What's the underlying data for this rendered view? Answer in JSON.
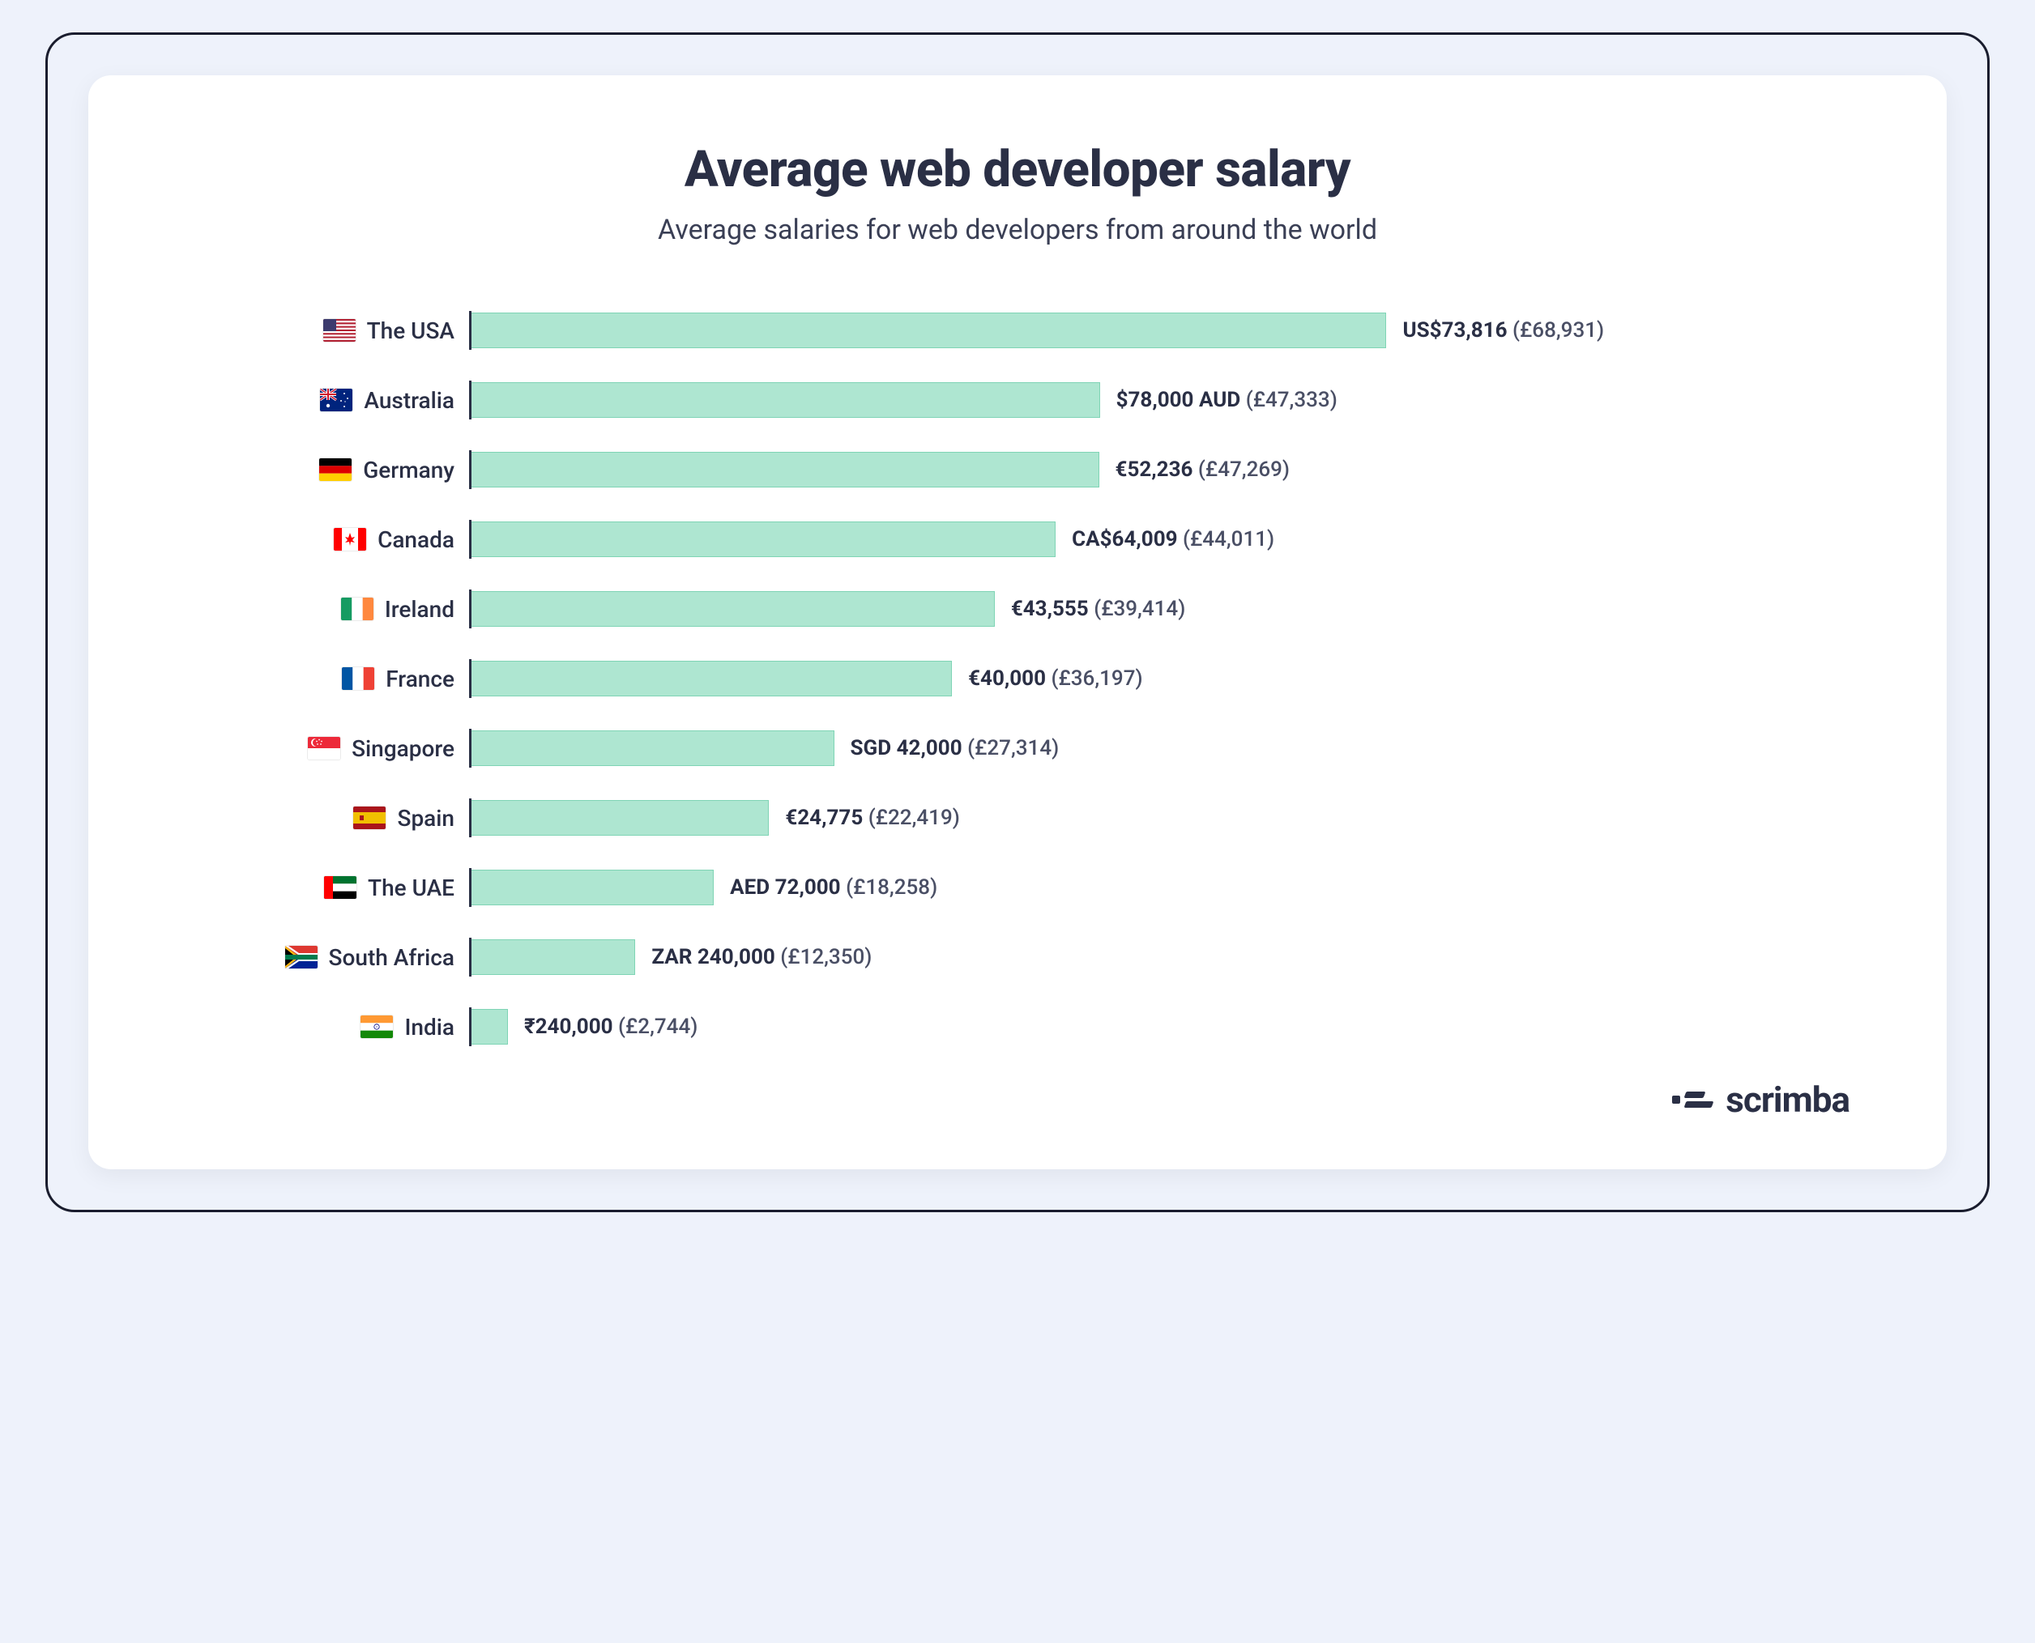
{
  "page": {
    "background_color": "#eef2fb",
    "frame_border_color": "#1a1d2e",
    "card_background": "#ffffff"
  },
  "header": {
    "title": "Average web developer salary",
    "subtitle": "Average salaries for web developers from around the world",
    "title_color": "#2a2f45",
    "title_fontsize": 62,
    "subtitle_color": "#3a3f55",
    "subtitle_fontsize": 34
  },
  "chart": {
    "type": "bar",
    "orientation": "horizontal",
    "bar_color": "#aee6d1",
    "bar_border_color": "#7fd4b5",
    "axis_color": "#2a2f45",
    "label_fontsize": 28,
    "value_fontsize": 26,
    "value_color": "#2a2f45",
    "gbp_color": "#4a4f65",
    "max_gbp": 68931,
    "full_bar_percent": 68,
    "rows": [
      {
        "country": "The USA",
        "flag": "usa",
        "local": "US$73,816",
        "gbp": "(£68,931)",
        "gbp_value": 68931
      },
      {
        "country": "Australia",
        "flag": "australia",
        "local": "$78,000 AUD",
        "gbp": "(£47,333)",
        "gbp_value": 47333
      },
      {
        "country": "Germany",
        "flag": "germany",
        "local": "€52,236",
        "gbp": "(£47,269)",
        "gbp_value": 47269
      },
      {
        "country": "Canada",
        "flag": "canada",
        "local": "CA$64,009",
        "gbp": "(£44,011)",
        "gbp_value": 44011
      },
      {
        "country": "Ireland",
        "flag": "ireland",
        "local": "€43,555",
        "gbp": "(£39,414)",
        "gbp_value": 39414
      },
      {
        "country": "France",
        "flag": "france",
        "local": "€40,000",
        "gbp": "(£36,197)",
        "gbp_value": 36197
      },
      {
        "country": "Singapore",
        "flag": "singapore",
        "local": "SGD 42,000",
        "gbp": "(£27,314)",
        "gbp_value": 27314
      },
      {
        "country": "Spain",
        "flag": "spain",
        "local": "€24,775",
        "gbp": "(£22,419)",
        "gbp_value": 22419
      },
      {
        "country": "The UAE",
        "flag": "uae",
        "local": "AED 72,000",
        "gbp": "(£18,258)",
        "gbp_value": 18258
      },
      {
        "country": "South Africa",
        "flag": "south-africa",
        "local": "ZAR 240,000",
        "gbp": "(£12,350)",
        "gbp_value": 12350
      },
      {
        "country": "India",
        "flag": "india",
        "local": "₹240,000",
        "gbp": "(£2,744)",
        "gbp_value": 2744
      }
    ]
  },
  "brand": {
    "name": "scrimba",
    "color": "#2a2f45"
  }
}
